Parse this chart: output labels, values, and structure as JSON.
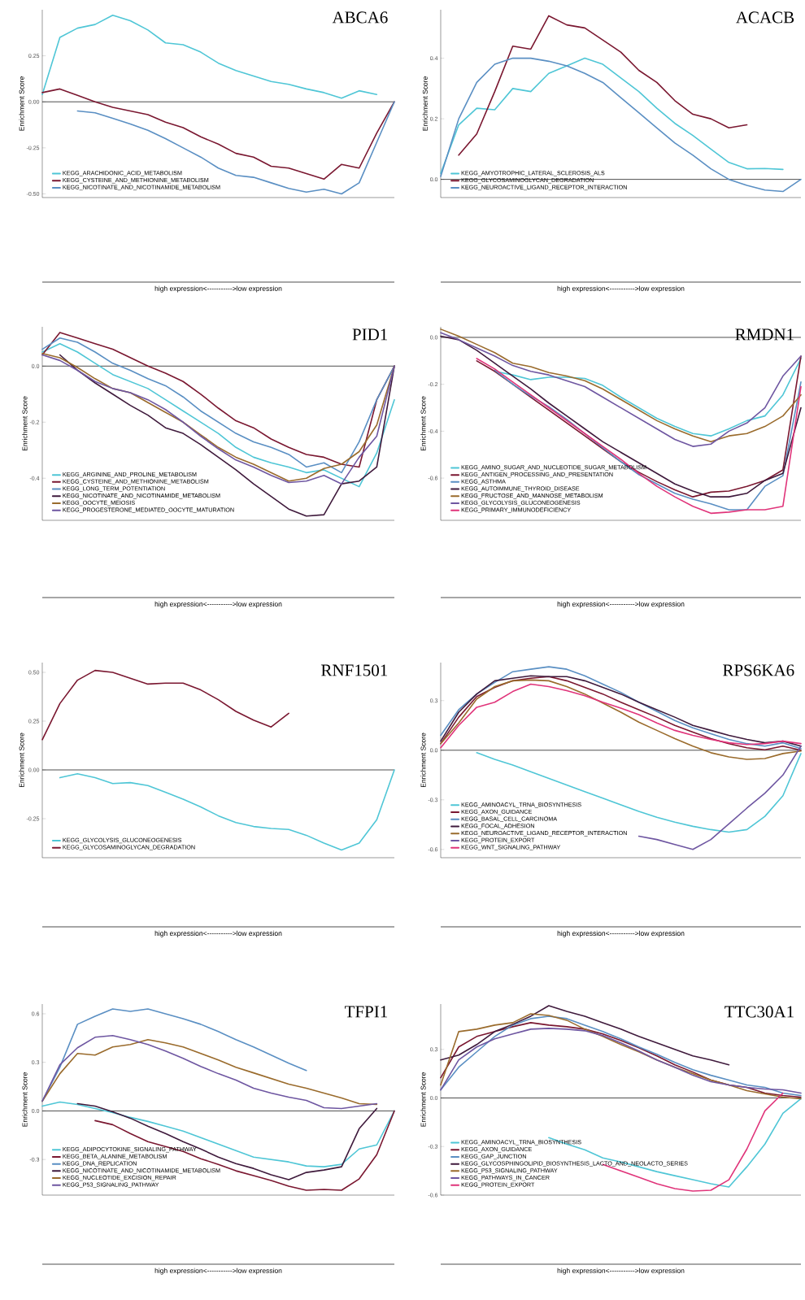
{
  "chart_data": [
    {
      "type": "line",
      "title": "ABCA6",
      "xlabel": "high expression<----------->low expression",
      "ylabel": "Enrichment Score",
      "legend": "bottom left",
      "marker": "none",
      "line_style": "solid",
      "categories": [
        null,
        null,
        null,
        null,
        null,
        null,
        null,
        null,
        null,
        null,
        null,
        null,
        null,
        null,
        null,
        null,
        null,
        null,
        null,
        null,
        null
      ],
      "ylim": [
        -0.52,
        0.5
      ],
      "yticks": [
        {
          "value": -0.5,
          "label": "-0.50"
        },
        {
          "value": -0.25,
          "label": "-0.25"
        },
        {
          "value": 0,
          "label": "0.00"
        },
        {
          "value": 0.25,
          "label": "0.25"
        }
      ],
      "ref_lines": [
        {
          "axis": "y",
          "value": 0,
          "color": "#000000"
        }
      ],
      "series": [
        {
          "name": "KEGG_ARACHIDONIC_ACID_METABOLISM",
          "color": "#4fc6d6",
          "values": [
            0.04,
            0.35,
            0.4,
            0.42,
            0.47,
            0.44,
            0.39,
            0.32,
            0.31,
            0.27,
            0.21,
            0.17,
            0.14,
            0.11,
            0.095,
            0.07,
            0.05,
            0.02,
            0.06,
            0.04,
            null
          ]
        },
        {
          "name": "KEGG_CYSTEINE_AND_METHIONINE_METABOLISM",
          "color": "#7a1730",
          "values": [
            0.05,
            0.07,
            0.035,
            0.0,
            -0.03,
            -0.05,
            -0.07,
            -0.11,
            -0.14,
            -0.19,
            -0.23,
            -0.28,
            -0.3,
            -0.35,
            -0.36,
            -0.39,
            -0.42,
            -0.34,
            -0.36,
            -0.17,
            0.0
          ]
        },
        {
          "name": "KEGG_NICOTINATE_AND_NICOTINAMIDE_METABOLISM",
          "color": "#5a8fc3",
          "values": [
            null,
            null,
            -0.05,
            -0.06,
            -0.09,
            -0.12,
            -0.155,
            -0.2,
            -0.25,
            -0.3,
            -0.36,
            -0.4,
            -0.41,
            -0.44,
            -0.47,
            -0.49,
            -0.475,
            -0.5,
            -0.44,
            -0.22,
            0.0
          ]
        }
      ]
    },
    {
      "type": "line",
      "title": "ACACB",
      "xlabel": "high expression<----------->low expression",
      "ylabel": "Enrichment Score",
      "legend": "bottom left",
      "marker": "none",
      "line_style": "solid",
      "categories": [
        null,
        null,
        null,
        null,
        null,
        null,
        null,
        null,
        null,
        null,
        null,
        null,
        null,
        null,
        null,
        null,
        null,
        null,
        null,
        null,
        null
      ],
      "ylim": [
        -0.06,
        0.56
      ],
      "yticks": [
        {
          "value": 0,
          "label": "0.0"
        },
        {
          "value": 0.2,
          "label": "0.2"
        },
        {
          "value": 0.4,
          "label": "0.4"
        }
      ],
      "ref_lines": [
        {
          "axis": "y",
          "value": 0,
          "color": "#000000"
        }
      ],
      "series": [
        {
          "name": "KEGG_AMYOTROPHIC_LATERAL_SCLEROSIS_ALS",
          "color": "#4fc6d6",
          "values": [
            0.02,
            0.18,
            0.235,
            0.23,
            0.3,
            0.29,
            0.35,
            0.375,
            0.4,
            0.38,
            0.335,
            0.29,
            0.235,
            0.185,
            0.145,
            0.1,
            0.056,
            0.035,
            0.036,
            0.033,
            null
          ]
        },
        {
          "name": "KEGG_GLYCOSAMINOGLYCAN_DEGRADATION",
          "color": "#7a1730",
          "values": [
            null,
            0.08,
            0.15,
            0.29,
            0.44,
            0.43,
            0.54,
            0.51,
            0.5,
            0.46,
            0.42,
            0.36,
            0.32,
            0.26,
            0.215,
            0.2,
            0.17,
            0.18,
            null,
            null,
            null
          ]
        },
        {
          "name": "KEGG_NEUROACTIVE_LIGAND_RECEPTOR_INTERACTION",
          "color": "#5a8fc3",
          "values": [
            0.01,
            0.2,
            0.32,
            0.38,
            0.4,
            0.4,
            0.39,
            0.375,
            0.35,
            0.32,
            0.27,
            0.22,
            0.17,
            0.12,
            0.08,
            0.035,
            0.0,
            -0.02,
            -0.035,
            -0.04,
            0.0
          ]
        }
      ]
    },
    {
      "type": "line",
      "title": "PID1",
      "xlabel": "high expression<----------->low expression",
      "ylabel": "Enrichment Score",
      "legend": "bottom left",
      "marker": "none",
      "line_style": "solid",
      "categories": [
        null,
        null,
        null,
        null,
        null,
        null,
        null,
        null,
        null,
        null,
        null,
        null,
        null,
        null,
        null,
        null,
        null,
        null,
        null,
        null,
        null
      ],
      "ylim": [
        -0.55,
        0.14
      ],
      "yticks": [
        {
          "value": -0.4,
          "label": "-0.4"
        },
        {
          "value": -0.2,
          "label": "-0.2"
        },
        {
          "value": 0,
          "label": "0.0"
        }
      ],
      "ref_lines": [
        {
          "axis": "y",
          "value": 0,
          "color": "#000000"
        }
      ],
      "series": [
        {
          "name": "KEGG_ARGININE_AND_PROLINE_METABOLISM",
          "color": "#4fc6d6",
          "values": [
            0.05,
            0.08,
            0.05,
            0.01,
            -0.03,
            -0.055,
            -0.08,
            -0.12,
            -0.16,
            -0.2,
            -0.24,
            -0.29,
            -0.325,
            -0.345,
            -0.36,
            -0.38,
            -0.37,
            -0.4,
            -0.43,
            -0.31,
            -0.12
          ]
        },
        {
          "name": "KEGG_CYSTEINE_AND_METHIONINE_METABOLISM",
          "color": "#7a1730",
          "values": [
            0.04,
            0.12,
            0.1,
            0.08,
            0.06,
            0.03,
            0.0,
            -0.025,
            -0.055,
            -0.1,
            -0.15,
            -0.195,
            -0.22,
            -0.26,
            -0.29,
            -0.315,
            -0.325,
            -0.35,
            -0.36,
            -0.12,
            0.0
          ]
        },
        {
          "name": "KEGG_LONG_TERM_POTENTIATION",
          "color": "#5a8fc3",
          "values": [
            0.06,
            0.1,
            0.085,
            0.05,
            0.01,
            -0.015,
            -0.045,
            -0.07,
            -0.11,
            -0.16,
            -0.2,
            -0.24,
            -0.27,
            -0.29,
            -0.315,
            -0.36,
            -0.345,
            -0.38,
            -0.27,
            -0.12,
            0.0
          ]
        },
        {
          "name": "KEGG_NICOTINATE_AND_NICOTINAMIDE_METABOLISM",
          "color": "#3f1a3c",
          "values": [
            null,
            0.04,
            -0.015,
            -0.06,
            -0.1,
            -0.14,
            -0.175,
            -0.22,
            -0.24,
            -0.28,
            -0.325,
            -0.37,
            -0.42,
            -0.465,
            -0.51,
            -0.535,
            -0.53,
            -0.42,
            -0.41,
            -0.36,
            0.0
          ]
        },
        {
          "name": "KEGG_OOCYTE_MEIOSIS",
          "color": "#9a6b2c",
          "values": [
            0.045,
            0.03,
            -0.005,
            -0.045,
            -0.08,
            -0.095,
            -0.13,
            -0.165,
            -0.2,
            -0.245,
            -0.29,
            -0.325,
            -0.35,
            -0.38,
            -0.41,
            -0.4,
            -0.365,
            -0.35,
            -0.305,
            -0.21,
            0.0
          ]
        },
        {
          "name": "KEGG_PROGESTERONE_MEDIATED_OOCYTE_MATURATION",
          "color": "#6e56a1",
          "values": [
            0.04,
            0.02,
            -0.015,
            -0.055,
            -0.08,
            -0.095,
            -0.12,
            -0.155,
            -0.2,
            -0.25,
            -0.295,
            -0.335,
            -0.36,
            -0.39,
            -0.415,
            -0.41,
            -0.39,
            -0.42,
            -0.325,
            -0.25,
            0.0
          ]
        }
      ]
    },
    {
      "type": "line",
      "title": "RMDN1",
      "xlabel": "high expression<----------->low expression",
      "ylabel": "Enrichment Score",
      "legend": "bottom left",
      "marker": "none",
      "line_style": "solid",
      "categories": [
        null,
        null,
        null,
        null,
        null,
        null,
        null,
        null,
        null,
        null,
        null,
        null,
        null,
        null,
        null,
        null,
        null,
        null,
        null,
        null,
        null
      ],
      "ylim": [
        -0.78,
        0.045
      ],
      "yticks": [
        {
          "value": -0.6,
          "label": "-0.6"
        },
        {
          "value": -0.4,
          "label": "-0.4"
        },
        {
          "value": -0.2,
          "label": "-0.2"
        },
        {
          "value": 0,
          "label": "0.0"
        }
      ],
      "ref_lines": [
        {
          "axis": "y",
          "value": 0,
          "color": "#000000"
        }
      ],
      "series": [
        {
          "name": "KEGG_AMINO_SUGAR_AND_NUCLEOTIDE_SUGAR_METABOLISM",
          "color": "#4fc6d6",
          "values": [
            null,
            null,
            null,
            -0.145,
            -0.16,
            -0.18,
            -0.17,
            -0.17,
            -0.175,
            -0.205,
            -0.255,
            -0.3,
            -0.345,
            -0.38,
            -0.41,
            -0.42,
            -0.39,
            -0.355,
            -0.335,
            -0.245,
            -0.09
          ]
        },
        {
          "name": "KEGG_ANTIGEN_PROCESSING_AND_PRESENTATION",
          "color": "#7a1730",
          "values": [
            null,
            null,
            -0.1,
            -0.145,
            -0.2,
            -0.255,
            -0.31,
            -0.365,
            -0.42,
            -0.475,
            -0.53,
            -0.575,
            -0.615,
            -0.65,
            -0.68,
            -0.66,
            -0.655,
            -0.635,
            -0.61,
            -0.565,
            -0.08
          ]
        },
        {
          "name": "KEGG_ASTHMA",
          "color": "#5a8fc3",
          "values": [
            null,
            null,
            null,
            -0.14,
            -0.2,
            -0.25,
            -0.295,
            -0.35,
            -0.41,
            -0.47,
            -0.53,
            -0.585,
            -0.625,
            -0.665,
            -0.69,
            -0.71,
            -0.735,
            -0.735,
            -0.635,
            -0.59,
            -0.19
          ]
        },
        {
          "name": "KEGG_AUTOIMMUNE_THYROID_DISEASE",
          "color": "#3f1a3c",
          "values": [
            0.005,
            -0.01,
            -0.055,
            -0.11,
            -0.165,
            -0.22,
            -0.28,
            -0.335,
            -0.39,
            -0.445,
            -0.49,
            -0.535,
            -0.58,
            -0.625,
            -0.655,
            -0.68,
            -0.68,
            -0.665,
            -0.61,
            -0.58,
            -0.3
          ]
        },
        {
          "name": "KEGG_FRUCTOSE_AND_MANNOSE_METABOLISM",
          "color": "#9a6b2c",
          "values": [
            0.035,
            0.005,
            -0.03,
            -0.065,
            -0.11,
            -0.125,
            -0.15,
            -0.165,
            -0.185,
            -0.22,
            -0.265,
            -0.31,
            -0.355,
            -0.39,
            -0.42,
            -0.445,
            -0.42,
            -0.41,
            -0.38,
            -0.335,
            -0.245
          ]
        },
        {
          "name": "KEGG_GLYCOLYSIS_GLUCONEOGENESIS",
          "color": "#6e56a1",
          "values": [
            0.02,
            -0.01,
            -0.045,
            -0.08,
            -0.12,
            -0.145,
            -0.16,
            -0.185,
            -0.21,
            -0.255,
            -0.3,
            -0.345,
            -0.39,
            -0.435,
            -0.465,
            -0.455,
            -0.4,
            -0.365,
            -0.3,
            -0.165,
            -0.08
          ]
        },
        {
          "name": "KEGG_PRIMARY_IMMUNODEFICIENCY",
          "color": "#e0347a",
          "values": [
            null,
            null,
            -0.09,
            -0.135,
            -0.19,
            -0.245,
            -0.3,
            -0.355,
            -0.41,
            -0.465,
            -0.52,
            -0.58,
            -0.635,
            -0.68,
            -0.72,
            -0.75,
            -0.745,
            -0.735,
            -0.735,
            -0.72,
            -0.21
          ]
        }
      ]
    },
    {
      "type": "line",
      "title": "RNF1501",
      "xlabel": "high expression<----------->low expression",
      "ylabel": "Enrichment Score",
      "legend": "bottom left",
      "marker": "none",
      "line_style": "solid",
      "categories": [
        null,
        null,
        null,
        null,
        null,
        null,
        null,
        null,
        null,
        null,
        null,
        null,
        null,
        null,
        null,
        null,
        null,
        null,
        null,
        null,
        null
      ],
      "ylim": [
        -0.45,
        0.55
      ],
      "yticks": [
        {
          "value": -0.25,
          "label": "-0.25"
        },
        {
          "value": 0,
          "label": "0.00"
        },
        {
          "value": 0.25,
          "label": "0.25"
        },
        {
          "value": 0.5,
          "label": "0.50"
        }
      ],
      "ref_lines": [
        {
          "axis": "y",
          "value": 0,
          "color": "#000000"
        }
      ],
      "series": [
        {
          "name": "KEGG_GLYCOLYSIS_GLUCONEOGENESIS",
          "color": "#4fc6d6",
          "values": [
            null,
            -0.04,
            -0.02,
            -0.04,
            -0.07,
            -0.065,
            -0.08,
            -0.115,
            -0.15,
            -0.19,
            -0.235,
            -0.27,
            -0.29,
            -0.3,
            -0.305,
            -0.335,
            -0.375,
            -0.41,
            -0.375,
            -0.255,
            0.0
          ]
        },
        {
          "name": "KEGG_GLYCOSAMINOGLYCAN_DEGRADATION",
          "color": "#7a1730",
          "values": [
            0.155,
            0.34,
            0.46,
            0.51,
            0.5,
            0.47,
            0.44,
            0.445,
            0.445,
            0.41,
            0.36,
            0.3,
            0.255,
            0.22,
            0.29,
            null,
            null,
            null,
            null,
            null,
            null
          ]
        }
      ]
    },
    {
      "type": "line",
      "title": "RPS6KA6",
      "xlabel": "high expression<----------->low expression",
      "ylabel": "Enrichment Score",
      "legend": "bottom left",
      "marker": "none",
      "line_style": "solid",
      "categories": [
        null,
        null,
        null,
        null,
        null,
        null,
        null,
        null,
        null,
        null,
        null,
        null,
        null,
        null,
        null,
        null,
        null,
        null,
        null,
        null,
        null
      ],
      "ylim": [
        -0.65,
        0.53
      ],
      "yticks": [
        {
          "value": -0.6,
          "label": "-0.6"
        },
        {
          "value": -0.3,
          "label": "-0.3"
        },
        {
          "value": 0,
          "label": "0.0"
        },
        {
          "value": 0.3,
          "label": "0.3"
        }
      ],
      "ref_lines": [
        {
          "axis": "y",
          "value": 0,
          "color": "#000000"
        }
      ],
      "series": [
        {
          "name": "KEGG_AMINOACYL_TRNA_BIOSYNTHESIS",
          "color": "#4fc6d6",
          "values": [
            null,
            null,
            -0.015,
            -0.055,
            -0.09,
            -0.13,
            -0.17,
            -0.21,
            -0.25,
            -0.29,
            -0.33,
            -0.37,
            -0.405,
            -0.435,
            -0.46,
            -0.48,
            -0.495,
            -0.48,
            -0.4,
            -0.275,
            -0.02
          ]
        },
        {
          "name": "KEGG_AXON_GUIDANCE",
          "color": "#7a1730",
          "values": [
            0.04,
            0.2,
            0.325,
            0.38,
            0.42,
            0.435,
            0.445,
            0.42,
            0.38,
            0.34,
            0.29,
            0.245,
            0.2,
            0.15,
            0.11,
            0.07,
            0.04,
            0.015,
            0.003,
            0.025,
            0.0
          ]
        },
        {
          "name": "KEGG_BASAL_CELL_CARCINOMA",
          "color": "#5a8fc3",
          "values": [
            0.09,
            0.245,
            0.34,
            0.41,
            0.475,
            0.49,
            0.505,
            0.49,
            0.45,
            0.4,
            0.35,
            0.29,
            0.235,
            0.18,
            0.135,
            0.1,
            0.065,
            0.04,
            0.025,
            0.045,
            0.01
          ]
        },
        {
          "name": "KEGG_FOCAL_ADHESION",
          "color": "#3f1a3c",
          "values": [
            0.055,
            0.23,
            0.34,
            0.42,
            0.435,
            0.45,
            0.445,
            0.445,
            0.42,
            0.38,
            0.34,
            0.29,
            0.245,
            0.2,
            0.15,
            0.12,
            0.09,
            0.065,
            0.045,
            0.055,
            0.025
          ]
        },
        {
          "name": "KEGG_NEUROACTIVE_LIGAND_RECEPTOR_INTERACTION",
          "color": "#9a6b2c",
          "values": [
            0.04,
            0.165,
            0.31,
            0.385,
            0.42,
            0.425,
            0.42,
            0.385,
            0.34,
            0.285,
            0.23,
            0.17,
            0.12,
            0.07,
            0.025,
            -0.015,
            -0.04,
            -0.055,
            -0.05,
            -0.02,
            -0.005
          ]
        },
        {
          "name": "KEGG_PROTEIN_EXPORT",
          "color": "#6e56a1",
          "values": [
            null,
            null,
            null,
            null,
            null,
            null,
            null,
            null,
            null,
            null,
            null,
            -0.52,
            -0.54,
            -0.57,
            -0.6,
            -0.54,
            -0.445,
            -0.35,
            -0.26,
            -0.15,
            0.025
          ]
        },
        {
          "name": "KEGG_WNT_SIGNALING_PATHWAY",
          "color": "#e0347a",
          "values": [
            0.015,
            0.15,
            0.26,
            0.29,
            0.355,
            0.4,
            0.385,
            0.36,
            0.33,
            0.29,
            0.255,
            0.215,
            0.165,
            0.12,
            0.09,
            0.065,
            0.045,
            0.035,
            0.04,
            0.055,
            0.04
          ]
        }
      ]
    },
    {
      "type": "line",
      "title": "TFPI1",
      "xlabel": "high expression<----------->low expression",
      "ylabel": "Enrichment Score",
      "legend": "bottom left",
      "marker": "none",
      "line_style": "solid",
      "categories": [
        null,
        null,
        null,
        null,
        null,
        null,
        null,
        null,
        null,
        null,
        null,
        null,
        null,
        null,
        null,
        null,
        null,
        null,
        null,
        null,
        null
      ],
      "ylim": [
        -0.52,
        0.66
      ],
      "yticks": [
        {
          "value": -0.3,
          "label": "-0.3"
        },
        {
          "value": 0,
          "label": "0.0"
        },
        {
          "value": 0.3,
          "label": "0.3"
        },
        {
          "value": 0.6,
          "label": "0.6"
        }
      ],
      "ref_lines": [
        {
          "axis": "y",
          "value": 0,
          "color": "#000000"
        }
      ],
      "series": [
        {
          "name": "KEGG_ADIPOCYTOKINE_SIGNALING_PATHWAY",
          "color": "#4fc6d6",
          "values": [
            0.03,
            0.055,
            0.04,
            0.015,
            -0.01,
            -0.04,
            -0.065,
            -0.095,
            -0.125,
            -0.165,
            -0.205,
            -0.245,
            -0.285,
            -0.3,
            -0.315,
            -0.34,
            -0.345,
            -0.33,
            -0.235,
            -0.21,
            0.0
          ]
        },
        {
          "name": "KEGG_BETA_ALANINE_METABOLISM",
          "color": "#7a1730",
          "values": [
            null,
            null,
            null,
            -0.06,
            -0.085,
            -0.14,
            -0.19,
            -0.22,
            -0.25,
            -0.295,
            -0.33,
            -0.37,
            -0.4,
            -0.43,
            -0.465,
            -0.49,
            -0.485,
            -0.49,
            -0.42,
            -0.27,
            0.0
          ]
        },
        {
          "name": "KEGG_DNA_REPLICATION",
          "color": "#5a8fc3",
          "values": [
            0.06,
            0.27,
            0.535,
            0.585,
            0.63,
            0.615,
            0.63,
            0.6,
            0.57,
            0.535,
            0.49,
            0.44,
            0.395,
            0.345,
            0.295,
            0.25,
            null,
            null,
            null,
            null,
            null
          ]
        },
        {
          "name": "KEGG_NICOTINATE_AND_NICOTINAMIDE_METABOLISM",
          "color": "#3f1a3c",
          "values": [
            null,
            null,
            0.045,
            0.03,
            -0.005,
            -0.045,
            -0.095,
            -0.14,
            -0.19,
            -0.235,
            -0.285,
            -0.325,
            -0.355,
            -0.395,
            -0.425,
            -0.38,
            -0.365,
            -0.345,
            -0.11,
            0.015,
            null
          ]
        },
        {
          "name": "KEGG_NUCLEOTIDE_EXCISION_REPAIR",
          "color": "#9a6b2c",
          "values": [
            0.06,
            0.23,
            0.355,
            0.345,
            0.395,
            0.41,
            0.44,
            0.42,
            0.395,
            0.355,
            0.315,
            0.27,
            0.235,
            0.2,
            0.165,
            0.14,
            0.11,
            0.08,
            0.045,
            0.04,
            null
          ]
        },
        {
          "name": "KEGG_P53_SIGNALING_PATHWAY",
          "color": "#6e56a1",
          "values": [
            0.06,
            0.285,
            0.39,
            0.455,
            0.465,
            0.44,
            0.41,
            0.37,
            0.325,
            0.275,
            0.23,
            0.19,
            0.14,
            0.11,
            0.085,
            0.065,
            0.02,
            0.015,
            0.03,
            0.045,
            null
          ]
        }
      ]
    },
    {
      "type": "line",
      "title": "TTC30A1",
      "xlabel": "high expression<----------->low expression",
      "ylabel": "Enrichment Score",
      "legend": "bottom left",
      "marker": "none",
      "line_style": "solid",
      "categories": [
        null,
        null,
        null,
        null,
        null,
        null,
        null,
        null,
        null,
        null,
        null,
        null,
        null,
        null,
        null,
        null,
        null,
        null,
        null,
        null,
        null
      ],
      "ylim": [
        -0.6,
        0.58
      ],
      "yticks": [
        {
          "value": -0.6,
          "label": "-0.6"
        },
        {
          "value": -0.3,
          "label": "-0.3"
        },
        {
          "value": 0,
          "label": "0.0"
        },
        {
          "value": 0.3,
          "label": "0.3"
        }
      ],
      "ref_lines": [
        {
          "axis": "y",
          "value": 0,
          "color": "#000000"
        }
      ],
      "series": [
        {
          "name": "KEGG_AMINOACYL_TRNA_BIOSYNTHESIS",
          "color": "#4fc6d6",
          "values": [
            null,
            null,
            null,
            null,
            null,
            null,
            -0.245,
            -0.285,
            -0.32,
            -0.37,
            -0.395,
            -0.425,
            -0.455,
            -0.48,
            -0.505,
            -0.53,
            -0.55,
            -0.425,
            -0.285,
            -0.095,
            -0.005
          ]
        },
        {
          "name": "KEGG_AXON_GUIDANCE",
          "color": "#7a1730",
          "values": [
            0.125,
            0.315,
            0.38,
            0.41,
            0.44,
            0.465,
            0.45,
            0.44,
            0.425,
            0.395,
            0.355,
            0.31,
            0.26,
            0.205,
            0.16,
            0.11,
            0.08,
            0.065,
            0.03,
            0.015,
            0.005
          ]
        },
        {
          "name": "KEGG_GAP_JUNCTION",
          "color": "#5a8fc3",
          "values": [
            0.05,
            0.19,
            0.285,
            0.38,
            0.45,
            0.49,
            0.505,
            0.49,
            0.45,
            0.41,
            0.365,
            0.315,
            0.27,
            0.22,
            0.175,
            0.14,
            0.11,
            0.08,
            0.065,
            0.03,
            0.015
          ]
        },
        {
          "name": "KEGG_GLYCOSPHINGOLIPID_BIOSYNTHESIS_LACTO_AND_NEOLACTO_SERIES",
          "color": "#3f1a3c",
          "values": [
            0.235,
            0.265,
            0.33,
            0.41,
            0.455,
            0.505,
            0.57,
            0.535,
            0.505,
            0.465,
            0.425,
            0.38,
            0.34,
            0.3,
            0.26,
            0.235,
            0.205,
            null,
            null,
            null,
            null
          ]
        },
        {
          "name": "KEGG_P53_SIGNALING_PATHWAY",
          "color": "#9a6b2c",
          "values": [
            0.08,
            0.41,
            0.425,
            0.45,
            0.465,
            0.52,
            0.51,
            0.48,
            0.425,
            0.38,
            0.33,
            0.285,
            0.235,
            0.19,
            0.15,
            0.11,
            0.08,
            0.045,
            0.025,
            0.005,
            -0.005
          ]
        },
        {
          "name": "KEGG_PATHWAYS_IN_CANCER",
          "color": "#6e56a1",
          "values": [
            0.05,
            0.235,
            0.315,
            0.365,
            0.395,
            0.425,
            0.43,
            0.425,
            0.415,
            0.385,
            0.34,
            0.29,
            0.235,
            0.19,
            0.14,
            0.1,
            0.08,
            0.065,
            0.055,
            0.05,
            0.03
          ]
        },
        {
          "name": "KEGG_PROTEIN_EXPORT",
          "color": "#e0347a",
          "values": [
            null,
            null,
            null,
            null,
            null,
            null,
            null,
            null,
            null,
            -0.41,
            -0.45,
            -0.49,
            -0.53,
            -0.56,
            -0.575,
            -0.57,
            -0.505,
            -0.315,
            -0.08,
            0.03,
            null
          ]
        }
      ]
    }
  ]
}
